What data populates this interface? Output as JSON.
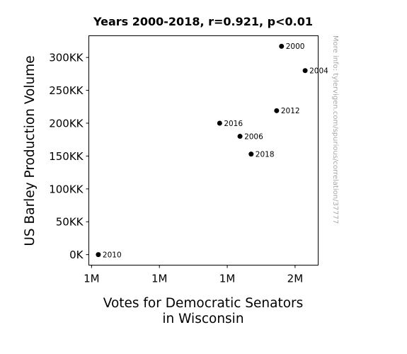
{
  "chart_data": {
    "type": "scatter",
    "title": "Years 2000-2018, r=0.921, p<0.01",
    "xlabel_lines": [
      "Votes for Democratic Senators",
      "in Wisconsin"
    ],
    "ylabel": "US Barley Production Volume",
    "watermark": "More info: tylervigen.com/spurious/correlation/37777",
    "x_tick_labels": [
      "1M",
      "1M",
      "1M",
      "2M"
    ],
    "y_tick_labels": [
      "0K",
      "50KK",
      "100KK",
      "150KK",
      "200KK",
      "250KK",
      "300KK"
    ],
    "y_ticks": [
      0,
      50000,
      100000,
      150000,
      200000,
      250000,
      300000
    ],
    "x_ticks": [
      1000000,
      1250000,
      1500000,
      1750000
    ],
    "xlim": [
      990000,
      1835000
    ],
    "ylim": [
      -16000,
      333000
    ],
    "grid": false,
    "marker_color": "#000000",
    "points": [
      {
        "label": "2000",
        "x": 1700000,
        "y": 317000
      },
      {
        "label": "2004",
        "x": 1787000,
        "y": 280000
      },
      {
        "label": "2006",
        "x": 1547000,
        "y": 180000
      },
      {
        "label": "2010",
        "x": 1025000,
        "y": 0
      },
      {
        "label": "2012",
        "x": 1682000,
        "y": 219000
      },
      {
        "label": "2016",
        "x": 1472000,
        "y": 200000
      },
      {
        "label": "2018",
        "x": 1588000,
        "y": 153000
      }
    ]
  }
}
